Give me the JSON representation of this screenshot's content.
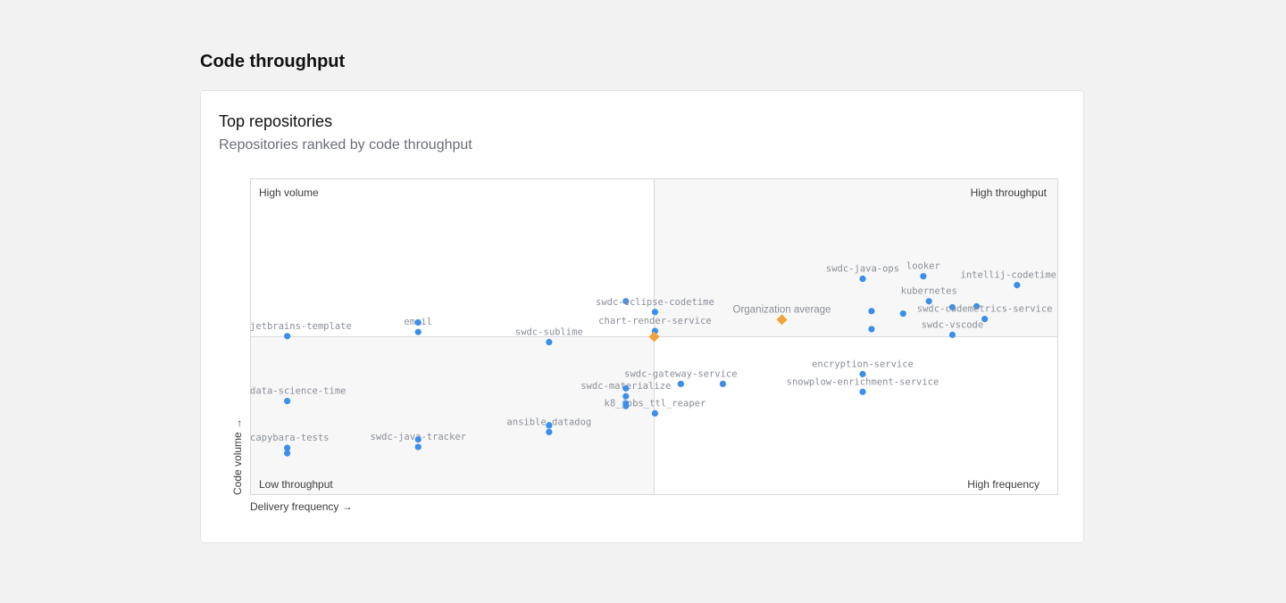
{
  "page": {
    "title": "Code throughput"
  },
  "card": {
    "title": "Top repositories",
    "subtitle": "Repositories ranked by code throughput"
  },
  "colors": {
    "point": "#3b8eea",
    "average": "#f0a43a",
    "quadrant_fill": "#f7f7f7",
    "border": "#d9d9d9"
  },
  "chart_data": {
    "type": "scatter",
    "xlabel": "Delivery frequency →",
    "ylabel": "Code volume →",
    "xlim": [
      0,
      100
    ],
    "ylim": [
      0,
      100
    ],
    "quadrant_labels": {
      "top_left": "High volume",
      "top_right": "High throughput",
      "bottom_left": "Low throughput",
      "bottom_right": "High frequency"
    },
    "average": {
      "label": "Organization average",
      "x": 50,
      "y": 50
    },
    "org_marker": {
      "x": 65.8,
      "y": 55.4
    },
    "points": [
      {
        "name": "jetbrains-template",
        "x": 4.6,
        "y": 50.2
      },
      {
        "name": "email",
        "x": 20.8,
        "y": 51.5
      },
      {
        "name": "",
        "x": 20.8,
        "y": 54.5
      },
      {
        "name": "swdc-sublime",
        "x": 37.0,
        "y": 48.3
      },
      {
        "name": "",
        "x": 46.5,
        "y": 61.2
      },
      {
        "name": "swdc-eclipse-codetime",
        "x": 50.1,
        "y": 57.8
      },
      {
        "name": "chart-render-service",
        "x": 50.1,
        "y": 51.8
      },
      {
        "name": "swdc-java-ops",
        "x": 75.8,
        "y": 68.3
      },
      {
        "name": "looker",
        "x": 83.3,
        "y": 69.1
      },
      {
        "name": "intellij-codetime",
        "x": 94.9,
        "y": 66.3
      },
      {
        "name": "kubernetes",
        "x": 84.0,
        "y": 61.2
      },
      {
        "name": "",
        "x": 86.9,
        "y": 59.3
      },
      {
        "name": "",
        "x": 89.9,
        "y": 59.6
      },
      {
        "name": "swdc-codemetrics-service",
        "x": 90.9,
        "y": 55.6
      },
      {
        "name": "",
        "x": 76.9,
        "y": 58.1
      },
      {
        "name": "",
        "x": 80.8,
        "y": 57.3
      },
      {
        "name": "",
        "x": 76.9,
        "y": 52.4
      },
      {
        "name": "swdc-vscode",
        "x": 86.9,
        "y": 50.6
      },
      {
        "name": "data-science-time",
        "x": 4.6,
        "y": 29.7
      },
      {
        "name": "swdc-materialize",
        "x": 46.5,
        "y": 31.2
      },
      {
        "name": "",
        "x": 46.5,
        "y": 33.7
      },
      {
        "name": "",
        "x": 46.5,
        "y": 28.1
      },
      {
        "name": "swdc-gateway-service",
        "x": 53.3,
        "y": 35.1
      },
      {
        "name": "",
        "x": 58.5,
        "y": 35.1
      },
      {
        "name": "encryption-service",
        "x": 75.8,
        "y": 38.2
      },
      {
        "name": "snowplow-enrichment-service",
        "x": 75.8,
        "y": 32.6
      },
      {
        "name": "k8_jobs_ttl_reaper",
        "x": 50.1,
        "y": 25.8
      },
      {
        "name": "",
        "x": 46.5,
        "y": 28.9
      },
      {
        "name": "ansible-datadog",
        "x": 37.0,
        "y": 19.9
      },
      {
        "name": "",
        "x": 37.0,
        "y": 22.0
      },
      {
        "name": "capybara-tests",
        "x": 4.6,
        "y": 14.9
      },
      {
        "name": "",
        "x": 4.6,
        "y": 13.2
      },
      {
        "name": "swdc-java-tracker",
        "x": 20.8,
        "y": 15.2
      },
      {
        "name": "",
        "x": 20.8,
        "y": 17.6
      }
    ]
  }
}
